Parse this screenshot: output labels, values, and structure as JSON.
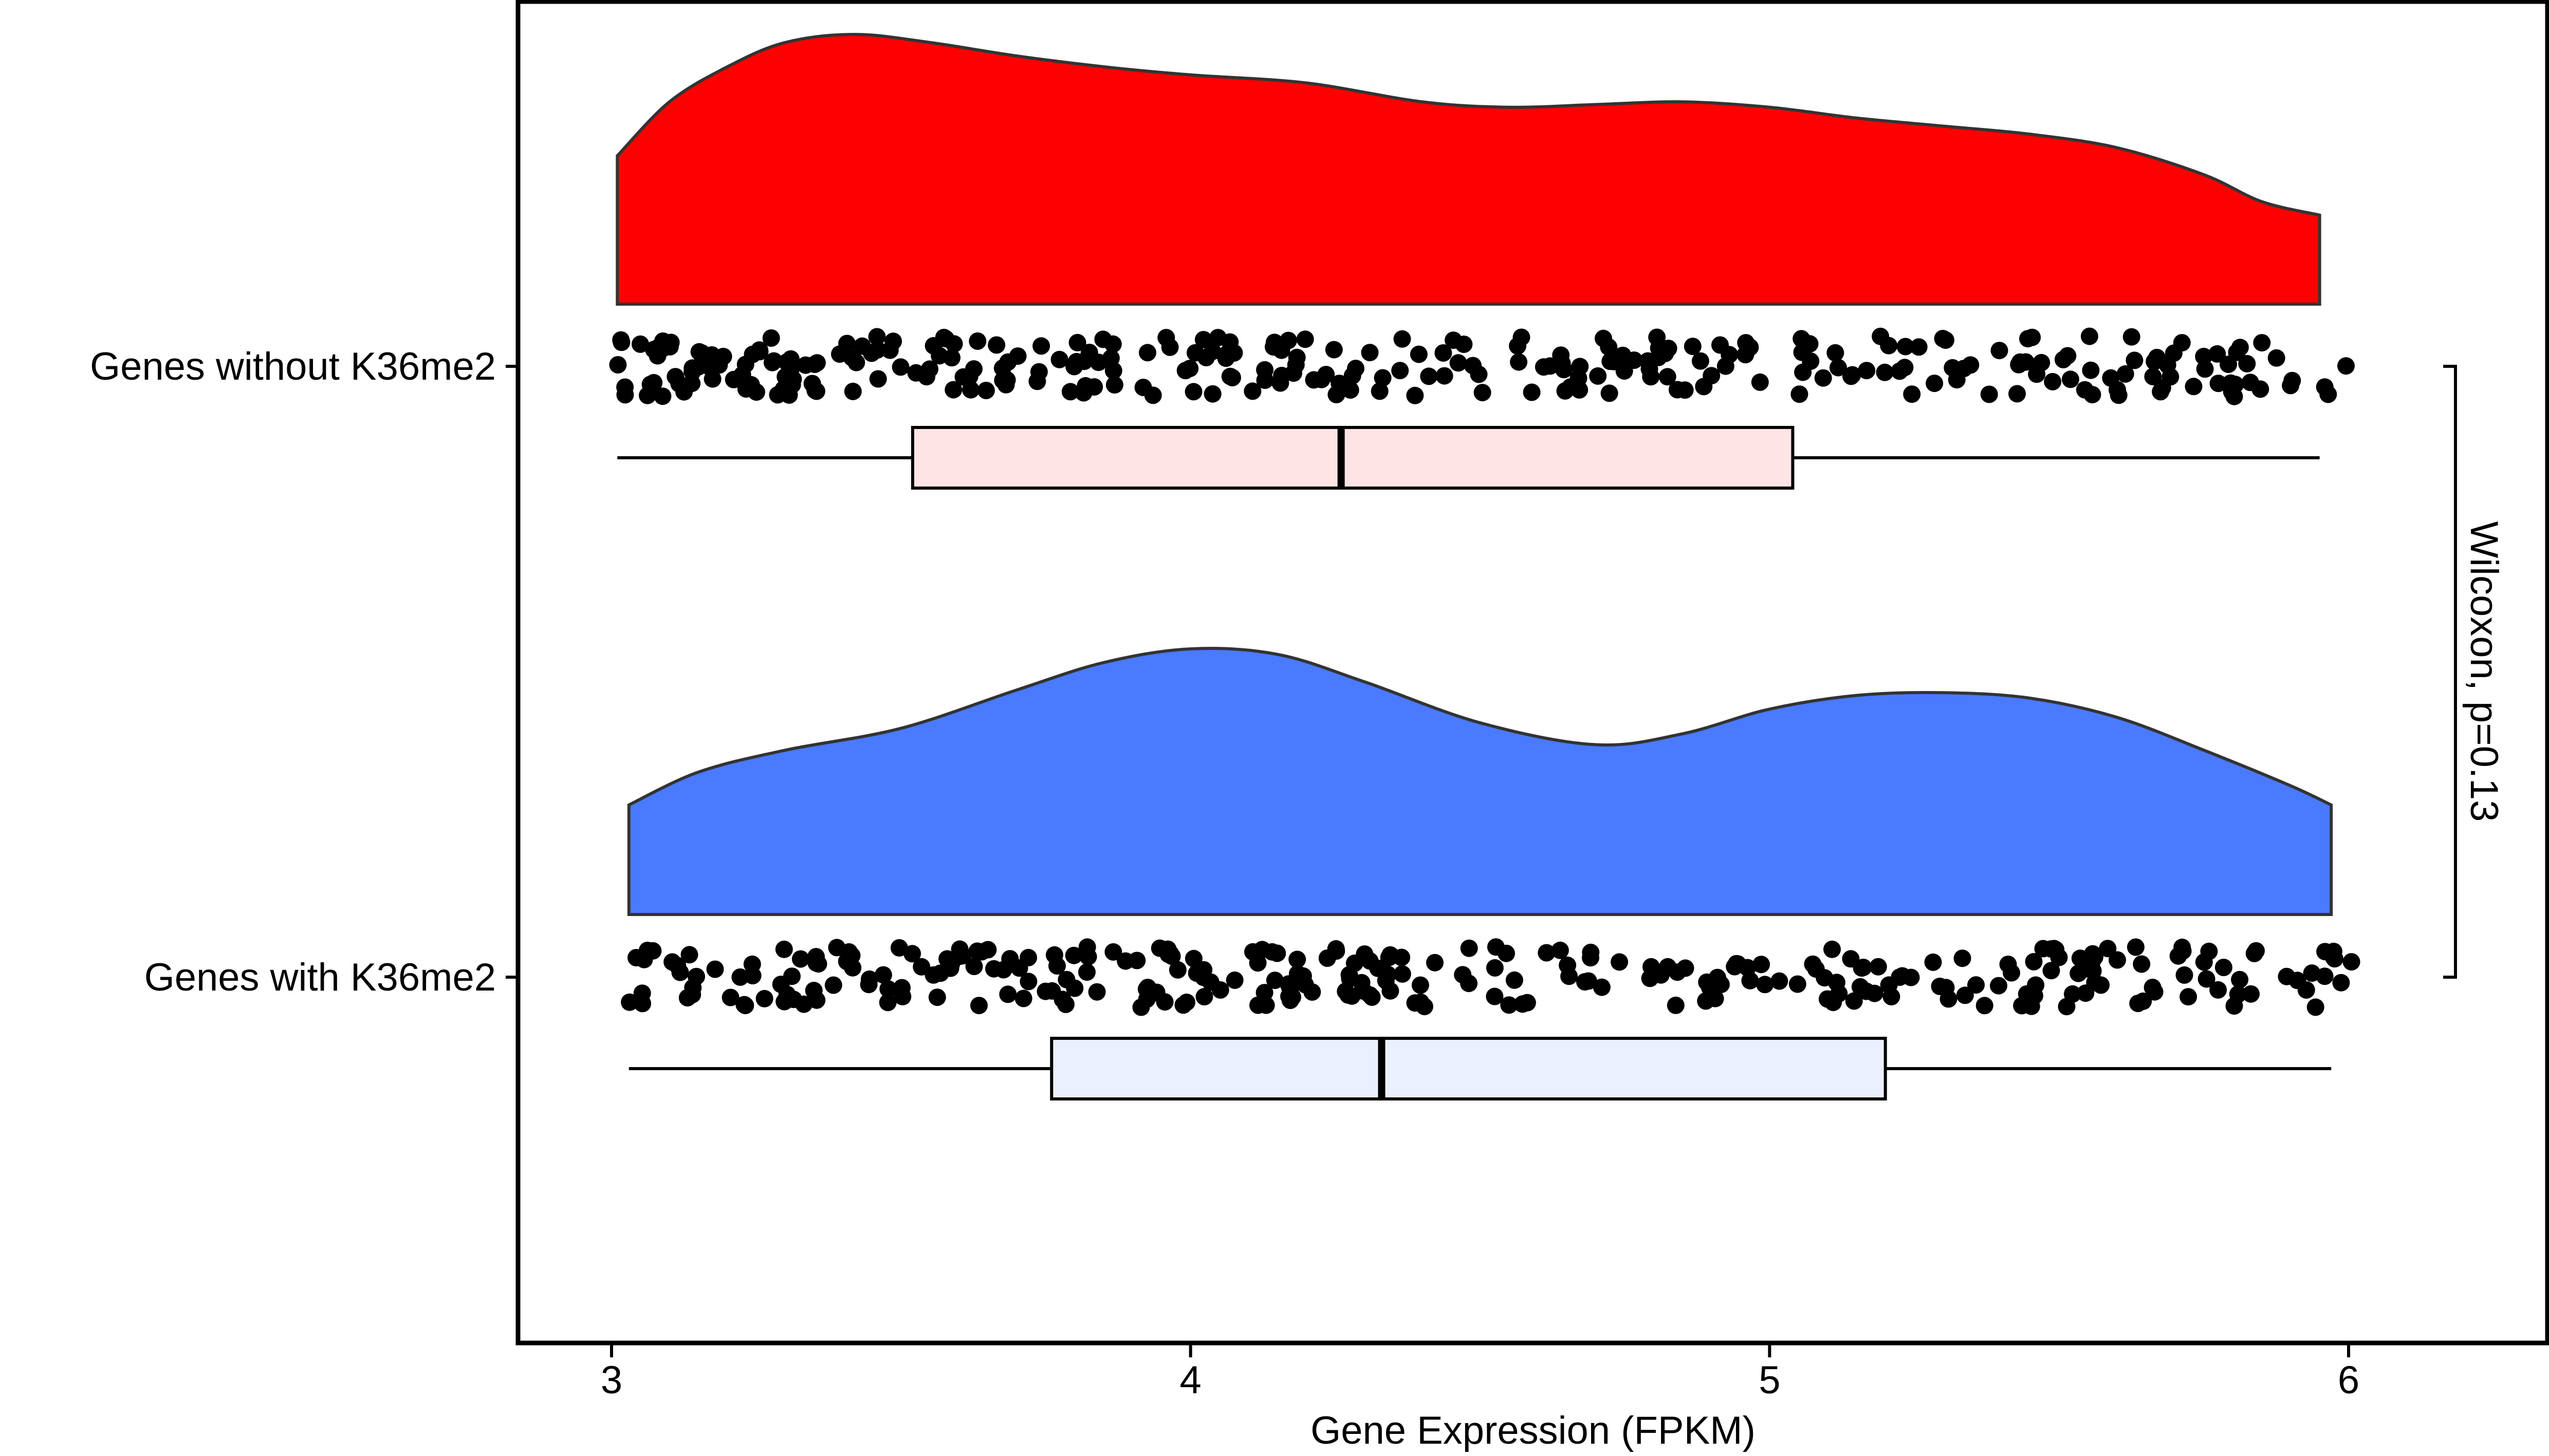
{
  "chart_data": {
    "type": "raincloud",
    "title": "",
    "xlabel": "Gene Expression (FPKM)",
    "ylabel": "",
    "xlim": [
      2.85,
      6.3
    ],
    "x_ticks": [
      3,
      4,
      5,
      6
    ],
    "grid": false,
    "legend": "none",
    "annotation": {
      "text": "Wilcoxon, p=0.13",
      "test": "Wilcoxon",
      "p_value": 0.13,
      "groups": [
        "Genes without K36me2",
        "Genes with K36me2"
      ]
    },
    "series": [
      {
        "category": "Genes without K36me2",
        "color": "#FF0000",
        "box_fill": "#FFE4E6",
        "box": {
          "min": 3.01,
          "q1": 3.52,
          "median": 4.26,
          "q3": 5.04,
          "max": 5.95
        },
        "density_x": [
          3.01,
          3.1,
          3.2,
          3.3,
          3.42,
          3.55,
          3.7,
          3.85,
          4.0,
          4.2,
          4.4,
          4.55,
          4.7,
          4.85,
          5.0,
          5.15,
          5.3,
          5.45,
          5.6,
          5.75,
          5.85,
          5.95
        ],
        "density_y": [
          0.55,
          0.75,
          0.88,
          0.97,
          1.0,
          0.97,
          0.92,
          0.88,
          0.85,
          0.82,
          0.75,
          0.73,
          0.74,
          0.75,
          0.73,
          0.69,
          0.66,
          0.63,
          0.58,
          0.48,
          0.38,
          0.33
        ]
      },
      {
        "category": "Genes with K36me2",
        "color": "#4A7AFF",
        "box_fill": "#EAF0FF",
        "box": {
          "min": 3.03,
          "q1": 3.76,
          "median": 4.33,
          "q3": 5.2,
          "max": 5.97
        },
        "density_x": [
          3.03,
          3.15,
          3.3,
          3.5,
          3.7,
          3.85,
          4.0,
          4.15,
          4.3,
          4.5,
          4.7,
          4.85,
          5.0,
          5.15,
          5.3,
          5.45,
          5.6,
          5.75,
          5.9,
          5.97
        ],
        "density_y": [
          0.4,
          0.52,
          0.6,
          0.68,
          0.82,
          0.92,
          0.97,
          0.95,
          0.85,
          0.7,
          0.62,
          0.66,
          0.75,
          0.8,
          0.81,
          0.79,
          0.72,
          0.6,
          0.47,
          0.4
        ]
      }
    ],
    "points_per_group": 300
  }
}
